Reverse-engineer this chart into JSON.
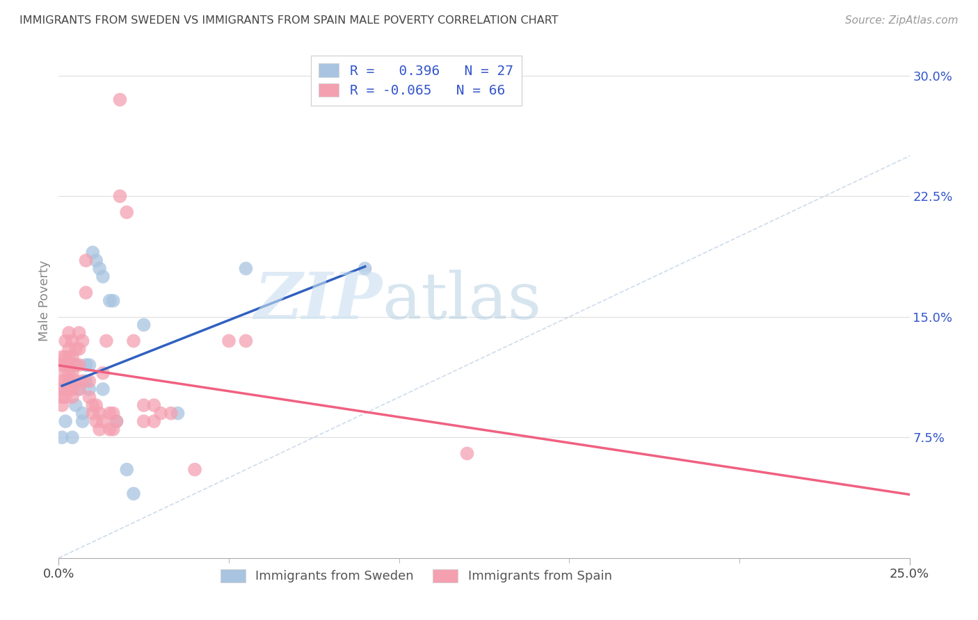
{
  "title": "IMMIGRANTS FROM SWEDEN VS IMMIGRANTS FROM SPAIN MALE POVERTY CORRELATION CHART",
  "source": "Source: ZipAtlas.com",
  "ylabel": "Male Poverty",
  "yticks": [
    0.075,
    0.15,
    0.225,
    0.3
  ],
  "ytick_labels": [
    "7.5%",
    "15.0%",
    "22.5%",
    "30.0%"
  ],
  "xlim": [
    0.0,
    0.25
  ],
  "ylim": [
    0.0,
    0.32
  ],
  "watermark_zip": "ZIP",
  "watermark_atlas": "atlas",
  "legend_sweden": "R =   0.396   N = 27",
  "legend_spain": "R = -0.065   N = 66",
  "sweden_color": "#a8c4e0",
  "spain_color": "#f4a0b0",
  "sweden_line_color": "#3060c0",
  "spain_line_color": "#f06080",
  "diag_line_color": "#c8d8e8",
  "sweden_N": 27,
  "spain_N": 66,
  "legend_text_color": "#3355cc",
  "sweden_data": [
    [
      0.001,
      0.075
    ],
    [
      0.002,
      0.085
    ],
    [
      0.003,
      0.11
    ],
    [
      0.004,
      0.075
    ],
    [
      0.005,
      0.095
    ],
    [
      0.005,
      0.12
    ],
    [
      0.006,
      0.105
    ],
    [
      0.007,
      0.09
    ],
    [
      0.007,
      0.085
    ],
    [
      0.008,
      0.12
    ],
    [
      0.008,
      0.11
    ],
    [
      0.009,
      0.12
    ],
    [
      0.009,
      0.105
    ],
    [
      0.01,
      0.19
    ],
    [
      0.011,
      0.185
    ],
    [
      0.012,
      0.18
    ],
    [
      0.013,
      0.175
    ],
    [
      0.013,
      0.105
    ],
    [
      0.015,
      0.16
    ],
    [
      0.016,
      0.16
    ],
    [
      0.017,
      0.085
    ],
    [
      0.02,
      0.055
    ],
    [
      0.022,
      0.04
    ],
    [
      0.025,
      0.145
    ],
    [
      0.035,
      0.09
    ],
    [
      0.055,
      0.18
    ],
    [
      0.09,
      0.18
    ]
  ],
  "spain_data": [
    [
      0.001,
      0.125
    ],
    [
      0.001,
      0.12
    ],
    [
      0.001,
      0.11
    ],
    [
      0.001,
      0.105
    ],
    [
      0.001,
      0.1
    ],
    [
      0.001,
      0.095
    ],
    [
      0.002,
      0.135
    ],
    [
      0.002,
      0.125
    ],
    [
      0.002,
      0.12
    ],
    [
      0.002,
      0.115
    ],
    [
      0.002,
      0.11
    ],
    [
      0.002,
      0.105
    ],
    [
      0.002,
      0.1
    ],
    [
      0.003,
      0.14
    ],
    [
      0.003,
      0.13
    ],
    [
      0.003,
      0.125
    ],
    [
      0.003,
      0.12
    ],
    [
      0.003,
      0.115
    ],
    [
      0.003,
      0.11
    ],
    [
      0.003,
      0.105
    ],
    [
      0.004,
      0.135
    ],
    [
      0.004,
      0.125
    ],
    [
      0.004,
      0.115
    ],
    [
      0.004,
      0.105
    ],
    [
      0.004,
      0.1
    ],
    [
      0.005,
      0.13
    ],
    [
      0.005,
      0.12
    ],
    [
      0.005,
      0.11
    ],
    [
      0.006,
      0.14
    ],
    [
      0.006,
      0.13
    ],
    [
      0.006,
      0.12
    ],
    [
      0.006,
      0.105
    ],
    [
      0.007,
      0.135
    ],
    [
      0.007,
      0.11
    ],
    [
      0.008,
      0.185
    ],
    [
      0.008,
      0.165
    ],
    [
      0.009,
      0.11
    ],
    [
      0.009,
      0.1
    ],
    [
      0.01,
      0.095
    ],
    [
      0.01,
      0.09
    ],
    [
      0.011,
      0.095
    ],
    [
      0.011,
      0.085
    ],
    [
      0.012,
      0.09
    ],
    [
      0.012,
      0.08
    ],
    [
      0.013,
      0.115
    ],
    [
      0.013,
      0.085
    ],
    [
      0.014,
      0.135
    ],
    [
      0.015,
      0.09
    ],
    [
      0.015,
      0.08
    ],
    [
      0.016,
      0.09
    ],
    [
      0.016,
      0.08
    ],
    [
      0.017,
      0.085
    ],
    [
      0.018,
      0.285
    ],
    [
      0.018,
      0.225
    ],
    [
      0.02,
      0.215
    ],
    [
      0.022,
      0.135
    ],
    [
      0.025,
      0.095
    ],
    [
      0.025,
      0.085
    ],
    [
      0.028,
      0.095
    ],
    [
      0.028,
      0.085
    ],
    [
      0.03,
      0.09
    ],
    [
      0.033,
      0.09
    ],
    [
      0.04,
      0.055
    ],
    [
      0.05,
      0.135
    ],
    [
      0.055,
      0.135
    ],
    [
      0.12,
      0.065
    ]
  ]
}
